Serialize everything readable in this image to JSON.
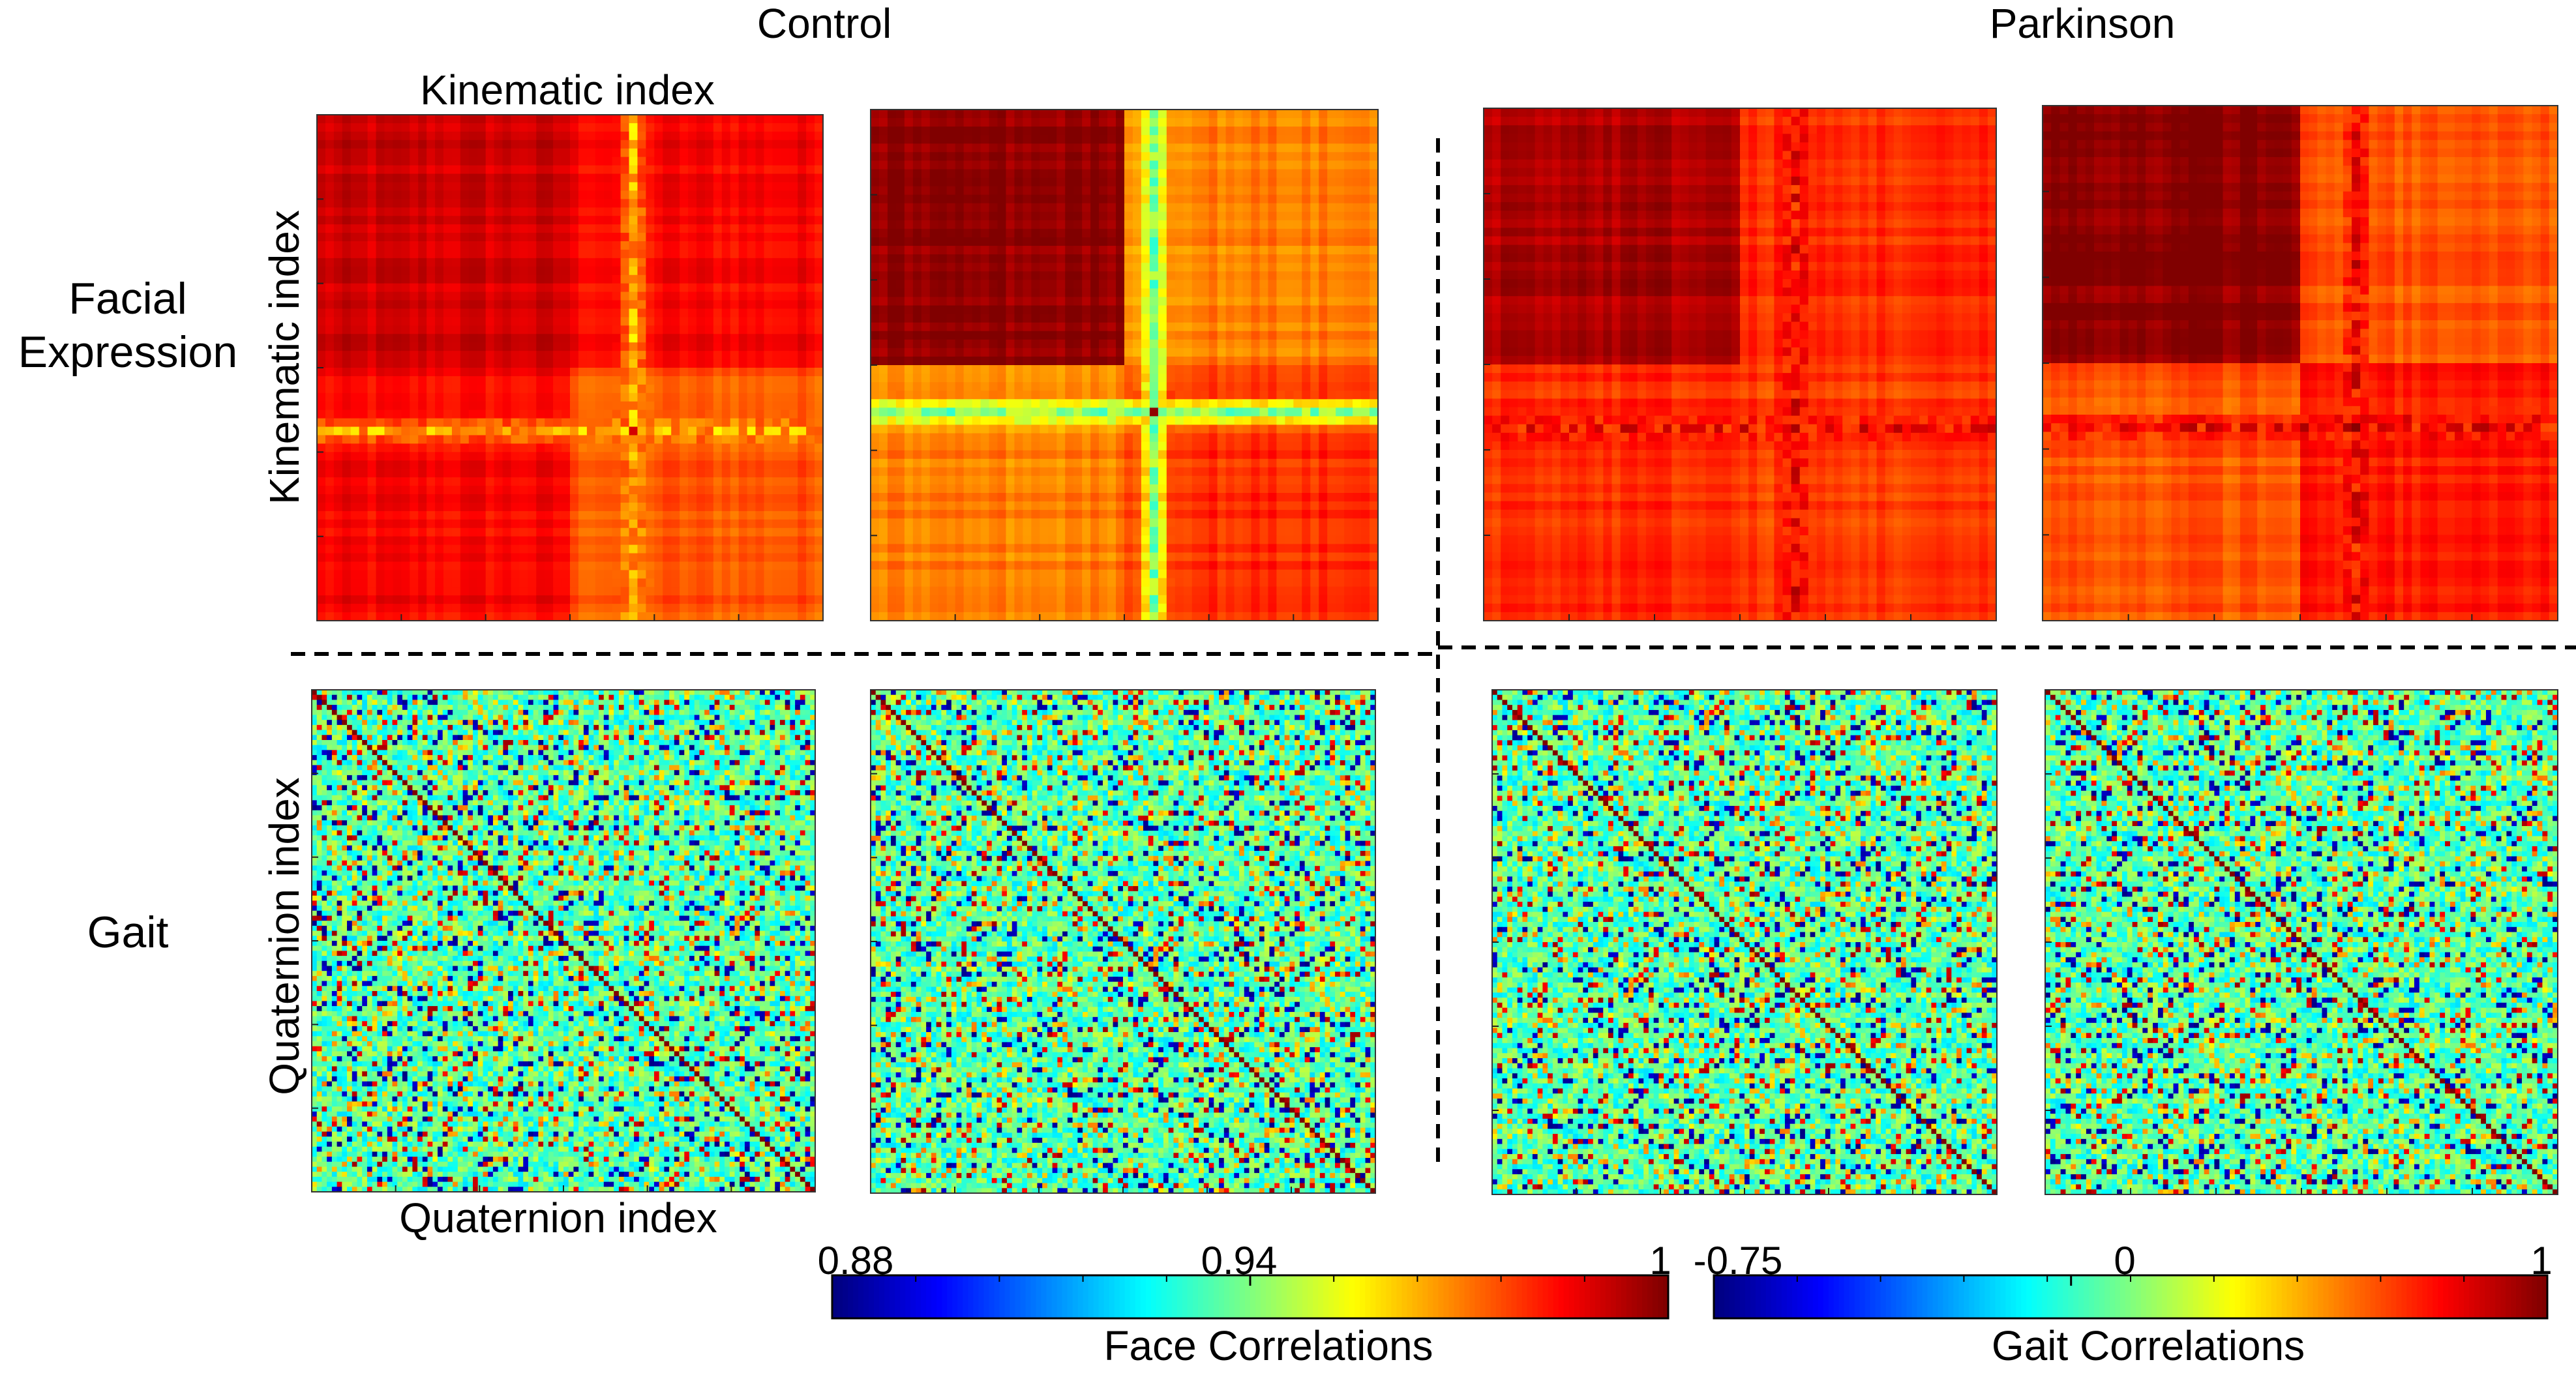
{
  "chart_data": {
    "type": "heatmap",
    "title": "",
    "groups": [
      "Control",
      "Parkinson"
    ],
    "rows": [
      {
        "label_lines": [
          "Facial",
          "Expression"
        ],
        "xlabel": "Kinematic index",
        "ylabel": "Kinematic index",
        "colorbar": "face"
      },
      {
        "label_lines": [
          "Gait"
        ],
        "xlabel": "Quaternion index",
        "ylabel": "Quaternion index",
        "colorbar": "gait"
      }
    ],
    "panels": [
      {
        "row": "Facial Expression",
        "group": "Control",
        "index": 1,
        "matrix_size": 60,
        "block_split": 0.5,
        "cross": [
          0.61,
          0.61
        ],
        "cross_min": 0.955,
        "block_corr": [
          0.99,
          0.985,
          0.975
        ]
      },
      {
        "row": "Facial Expression",
        "group": "Control",
        "index": 2,
        "matrix_size": 60,
        "block_split": 0.5,
        "cross": [
          0.58,
          0.55
        ],
        "cross_min": 0.93,
        "block_corr": [
          0.998,
          0.97,
          0.98
        ]
      },
      {
        "row": "Facial Expression",
        "group": "Parkinson",
        "index": 1,
        "matrix_size": 60,
        "block_split": 0.5,
        "cross": [
          0.62,
          0.6
        ],
        "cross_min": 0.975,
        "block_corr": [
          0.995,
          0.98,
          0.978
        ]
      },
      {
        "row": "Facial Expression",
        "group": "Parkinson",
        "index": 2,
        "matrix_size": 60,
        "block_split": 0.5,
        "cross": [
          0.62,
          0.6
        ],
        "cross_min": 0.975,
        "block_corr": [
          0.999,
          0.975,
          0.982
        ]
      },
      {
        "row": "Gait",
        "group": "Control",
        "index": 1,
        "matrix_size": 100,
        "diagonal": 1
      },
      {
        "row": "Gait",
        "group": "Control",
        "index": 2,
        "matrix_size": 100,
        "diagonal": 1
      },
      {
        "row": "Gait",
        "group": "Parkinson",
        "index": 1,
        "matrix_size": 100,
        "diagonal": 1
      },
      {
        "row": "Gait",
        "group": "Parkinson",
        "index": 2,
        "matrix_size": 100,
        "diagonal": 1
      }
    ],
    "colorbars": {
      "face": {
        "title": "Face Correlations",
        "range": [
          0.88,
          1
        ],
        "tick_labels": [
          "0.88",
          "0.94",
          "1"
        ],
        "tick_values": [
          0.88,
          0.94,
          1
        ]
      },
      "gait": {
        "title": "Gait Correlations",
        "range": [
          -0.75,
          1
        ],
        "tick_labels": [
          "-0.75",
          "0",
          "1"
        ],
        "tick_values": [
          -0.75,
          0,
          1
        ]
      }
    },
    "colormap": "jet",
    "separators": "dashed lines between groups and between rows"
  }
}
